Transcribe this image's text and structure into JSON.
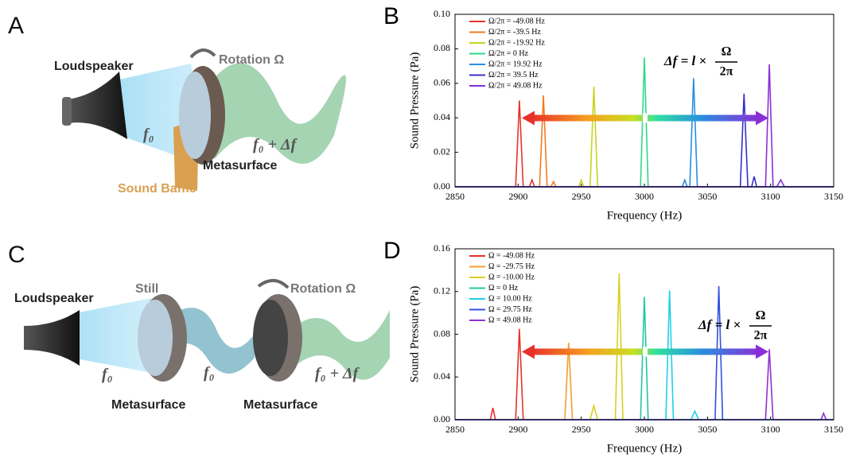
{
  "illustration_a": {
    "label": "A",
    "loudspeaker": "Loudspeaker",
    "rotation": "Rotation Ω",
    "input": "f₀",
    "output": "f₀ + Δf",
    "metasurface": "Metasurface",
    "baffle": "Sound Baffle"
  },
  "illustration_c": {
    "label": "C",
    "loudspeaker": "Loudspeaker",
    "still": "Still",
    "rotation": "Rotation Ω",
    "input": "f₀",
    "middle": "f₀",
    "output": "f₀ + Δf",
    "metasurface_left": "Metasurface",
    "metasurface_right": "Metasurface"
  },
  "chart_data": [
    {
      "type": "line",
      "label": "B",
      "x_label": "Frequency (Hz)",
      "y_label": "Sound Pressure (Pa)",
      "xlim": [
        2850,
        3150
      ],
      "xticks": [
        2850,
        2900,
        2950,
        3000,
        3050,
        3100,
        3150
      ],
      "ylim": [
        0,
        0.1
      ],
      "yticks": [
        {
          "value": 0,
          "label": "0.00"
        },
        0.02,
        0.04,
        0.06,
        0.08,
        {
          "value": 0.1,
          "label": "0.10"
        }
      ],
      "legend": "upper left",
      "formula": {
        "lhs": "Δf = l ×",
        "numerator": "Ω",
        "denominator": "2π"
      },
      "series": [
        {
          "name": "Ω/2π = -49.08 Hz",
          "color": "#e8312a",
          "x": [
            2850,
            2898,
            2901,
            2904,
            2909,
            2911,
            2913,
            3150
          ],
          "values": [
            0,
            0,
            0.05,
            0,
            0,
            0.004,
            0,
            0
          ]
        },
        {
          "name": "Ω/2π = -39.5 Hz",
          "color": "#f47a20",
          "x": [
            2850,
            2917,
            2920,
            2923,
            2926,
            2928,
            2930,
            3150
          ],
          "values": [
            0,
            0,
            0.053,
            0,
            0,
            0.003,
            0,
            0
          ]
        },
        {
          "name": "Ω/2π = -19.92 Hz",
          "color": "#c8d420",
          "x": [
            2850,
            2948,
            2950,
            2952,
            2957,
            2960,
            2963,
            3150
          ],
          "values": [
            0,
            0,
            0.004,
            0,
            0,
            0.058,
            0,
            0
          ]
        },
        {
          "name": "Ω/2π = 0 Hz",
          "color": "#2fd88a",
          "x": [
            2850,
            2997,
            3000,
            3003,
            3150
          ],
          "values": [
            0,
            0,
            0.075,
            0,
            0
          ]
        },
        {
          "name": "Ω/2π = 19.92 Hz",
          "color": "#2a8de0",
          "x": [
            2850,
            3030,
            3032,
            3034,
            3036,
            3039,
            3042,
            3150
          ],
          "values": [
            0,
            0,
            0.004,
            0,
            0,
            0.063,
            0,
            0
          ]
        },
        {
          "name": "Ω/2π = 39.5 Hz",
          "color": "#3a2fc8",
          "x": [
            2850,
            3076,
            3079,
            3082,
            3085,
            3087,
            3089,
            3150
          ],
          "values": [
            0,
            0,
            0.054,
            0,
            0,
            0.006,
            0,
            0
          ]
        },
        {
          "name": "Ω/2π = 49.08 Hz",
          "color": "#8a2fd8",
          "x": [
            2850,
            3096,
            3099,
            3102,
            3105,
            3108,
            3111,
            3150
          ],
          "values": [
            0,
            0,
            0.071,
            0,
            0,
            0.004,
            0,
            0
          ]
        }
      ]
    },
    {
      "type": "line",
      "label": "D",
      "x_label": "Frequency (Hz)",
      "y_label": "Sound Pressure (Pa)",
      "xlim": [
        2850,
        3150
      ],
      "xticks": [
        2850,
        2900,
        2950,
        3000,
        3050,
        3100,
        3150
      ],
      "ylim": [
        0,
        0.16
      ],
      "yticks": [
        {
          "value": 0,
          "label": "0.00"
        },
        0.04,
        0.08,
        0.12,
        0.16
      ],
      "legend": "upper left",
      "formula": {
        "lhs": "Δf = l ×",
        "numerator": "Ω",
        "denominator": "2π"
      },
      "series": [
        {
          "name": "Ω = -49.08 Hz",
          "color": "#e8312a",
          "x": [
            2850,
            2878,
            2880,
            2882,
            2898,
            2901,
            2904,
            3150
          ],
          "values": [
            0,
            0,
            0.011,
            0,
            0,
            0.085,
            0,
            0
          ]
        },
        {
          "name": "Ω = -29.75 Hz",
          "color": "#f0a030",
          "x": [
            2850,
            2937,
            2940,
            2943,
            3150
          ],
          "values": [
            0,
            0,
            0.072,
            0,
            0
          ]
        },
        {
          "name": "Ω = -10.00 Hz",
          "color": "#d8d020",
          "x": [
            2850,
            2957,
            2960,
            2963,
            2977,
            2980,
            2983,
            3150
          ],
          "values": [
            0,
            0,
            0.013,
            0,
            0,
            0.137,
            0,
            0
          ]
        },
        {
          "name": "Ω = 0 Hz",
          "color": "#20c8a0",
          "x": [
            2850,
            2997,
            3000,
            3003,
            3150
          ],
          "values": [
            0,
            0,
            0.115,
            0,
            0
          ]
        },
        {
          "name": "Ω = 10.00 Hz",
          "color": "#20d0e8",
          "x": [
            2850,
            3017,
            3020,
            3023,
            3037,
            3040,
            3043,
            3150
          ],
          "values": [
            0,
            0,
            0.121,
            0,
            0,
            0.008,
            0,
            0
          ]
        },
        {
          "name": "Ω = 29.75 Hz",
          "color": "#3050e0",
          "x": [
            2850,
            3056,
            3059,
            3062,
            3150
          ],
          "values": [
            0,
            0,
            0.125,
            0,
            0
          ]
        },
        {
          "name": "Ω = 49.08 Hz",
          "color": "#9030d0",
          "x": [
            2850,
            3096,
            3099,
            3102,
            3140,
            3142,
            3144,
            3150
          ],
          "values": [
            0,
            0,
            0.066,
            0,
            0,
            0.006,
            0,
            0
          ]
        }
      ]
    }
  ]
}
